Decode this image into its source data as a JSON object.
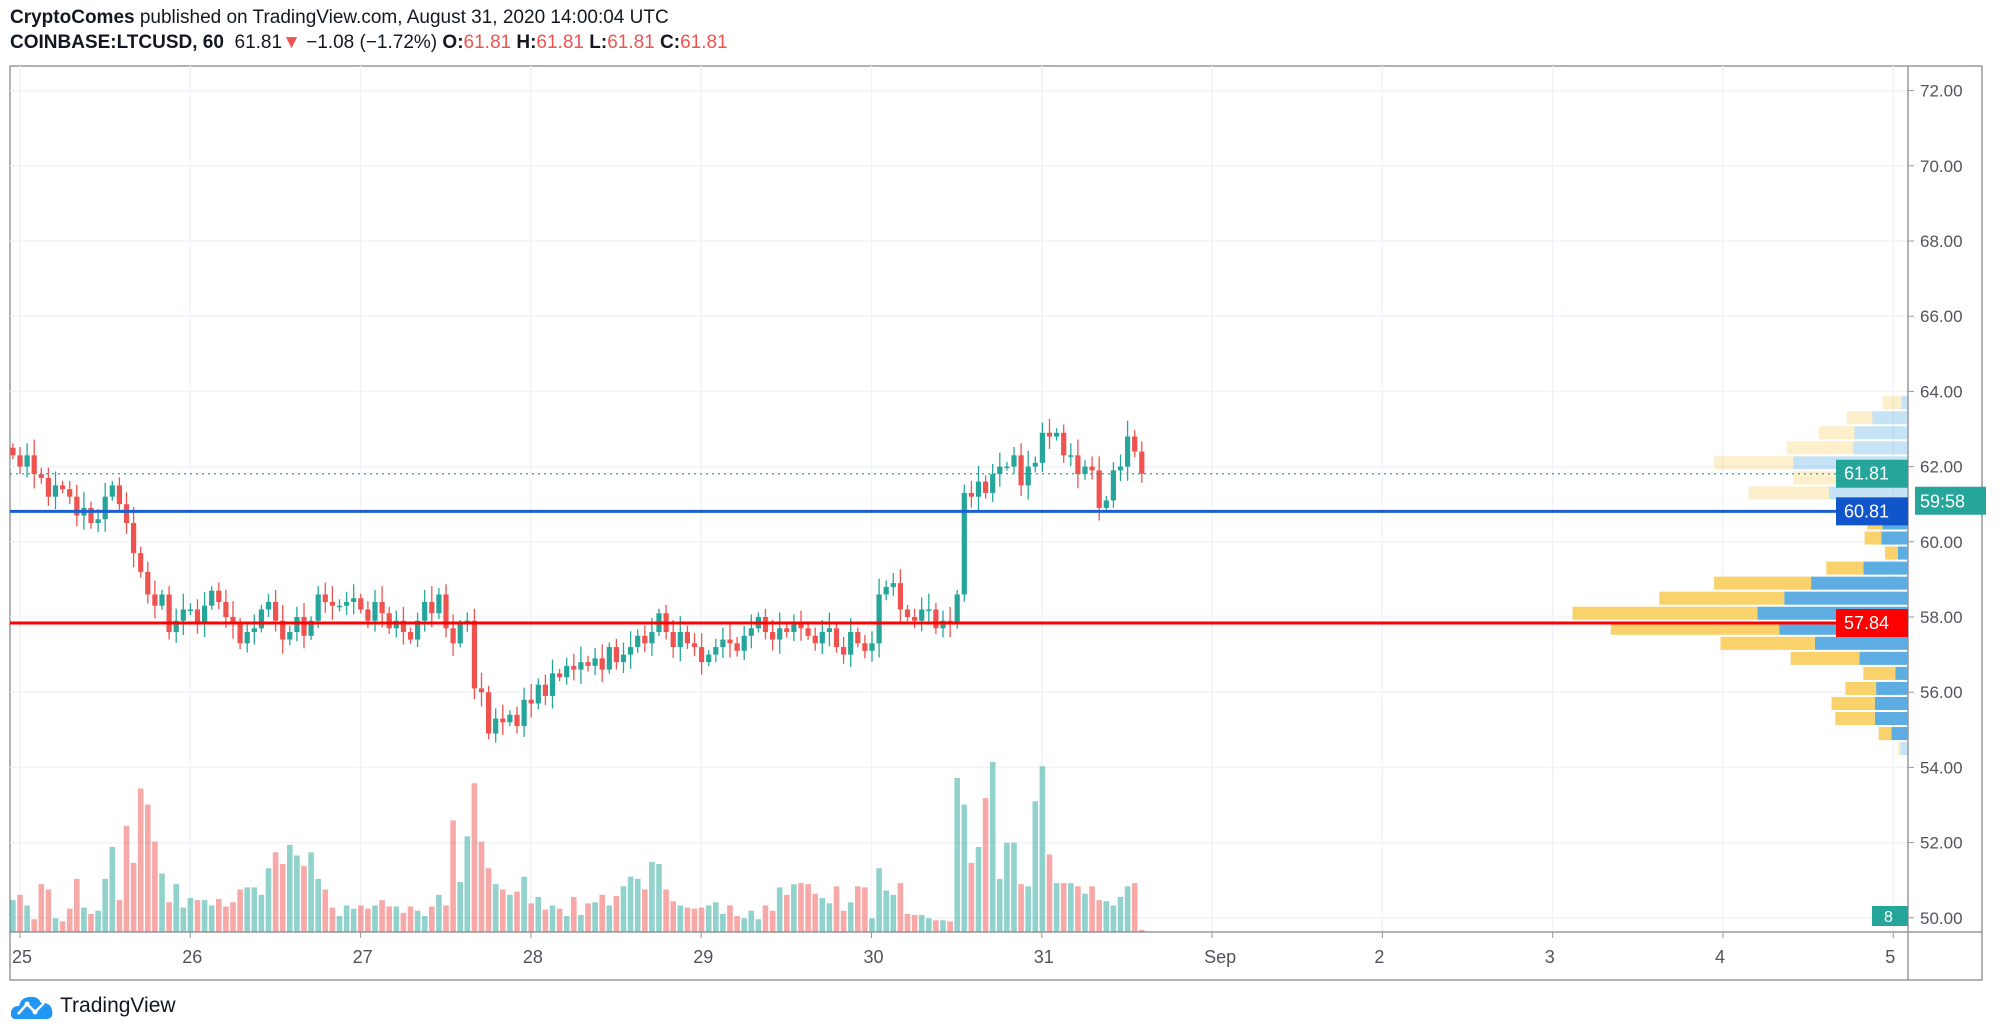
{
  "header": {
    "author": "CryptoComes",
    "published": "published on TradingView.com, August 31, 2020 14:00:04 UTC",
    "symbol": "COINBASE:LTCUSD, 60",
    "last": "61.81",
    "change": "−1.08 (−1.72%)",
    "o_label": "O:",
    "o": "61.81",
    "h_label": "H:",
    "h": "61.81",
    "l_label": "L:",
    "l": "61.81",
    "c_label": "C:",
    "c": "61.81"
  },
  "footer": {
    "brand": "TradingView"
  },
  "colors": {
    "up": "#26a69a",
    "down": "#ef5350",
    "support_line": "#1c5fd0",
    "poc_line": "#ff0000",
    "vp_up": "#5dade2",
    "vp_down": "#f9d26b"
  },
  "chart_data": {
    "type": "candlestick",
    "interval": "60",
    "start": "2020-08-24 23:00",
    "ylim": [
      49.6,
      72.6
    ],
    "y_ticks": [
      "72.00",
      "70.00",
      "68.00",
      "66.00",
      "64.00",
      "62.00",
      "60.00",
      "58.00",
      "56.00",
      "54.00",
      "52.00",
      "50.00"
    ],
    "x_ticks": [
      "25",
      "26",
      "27",
      "28",
      "29",
      "30",
      "31",
      "Sep",
      "2",
      "3",
      "4",
      "5"
    ],
    "grid": true,
    "closes": [
      62.3,
      62.0,
      62.3,
      61.8,
      61.7,
      61.2,
      61.5,
      61.4,
      61.2,
      60.7,
      60.9,
      60.5,
      60.6,
      61.2,
      61.5,
      61.0,
      60.5,
      59.7,
      59.2,
      58.6,
      58.3,
      58.6,
      57.6,
      57.9,
      58.2,
      58.2,
      57.8,
      58.3,
      58.7,
      58.4,
      58.0,
      57.8,
      57.3,
      57.6,
      57.7,
      58.2,
      58.4,
      57.9,
      57.4,
      57.6,
      58.0,
      57.5,
      57.9,
      58.6,
      58.4,
      58.3,
      58.3,
      58.4,
      58.5,
      58.2,
      57.9,
      58.4,
      58.1,
      57.7,
      57.9,
      57.6,
      57.4,
      57.9,
      58.4,
      58.1,
      58.6,
      57.7,
      57.3,
      57.8,
      57.9,
      56.1,
      56.0,
      54.9,
      55.3,
      55.2,
      55.4,
      55.1,
      55.8,
      55.7,
      56.2,
      55.9,
      56.5,
      56.4,
      56.7,
      56.6,
      56.8,
      56.7,
      56.9,
      56.6,
      57.2,
      56.8,
      57.0,
      57.2,
      57.5,
      57.3,
      57.6,
      58.1,
      57.6,
      57.2,
      57.6,
      57.3,
      57.2,
      56.8,
      57.0,
      57.2,
      57.4,
      57.3,
      57.1,
      57.5,
      57.7,
      58.0,
      57.6,
      57.4,
      57.7,
      57.6,
      57.8,
      57.7,
      57.5,
      57.3,
      57.6,
      57.7,
      57.2,
      57.0,
      57.6,
      57.3,
      57.1,
      57.3,
      58.6,
      58.8,
      58.9,
      58.2,
      58.0,
      57.9,
      58.2,
      58.2,
      57.7,
      57.9,
      57.8,
      58.6,
      61.3,
      61.2,
      61.6,
      61.3,
      61.8,
      62.0,
      62.0,
      62.3,
      61.5,
      62.0,
      62.1,
      62.9,
      62.8,
      62.9,
      62.3,
      62.3,
      61.8,
      62.0,
      61.9,
      60.9,
      61.1,
      61.9,
      62.0,
      62.8,
      62.4,
      61.81
    ],
    "volumes": [
      3.0,
      3.5,
      2.5,
      1.2,
      4.5,
      4,
      1.3,
      1,
      2.2,
      5,
      2.3,
      1.7,
      2,
      5,
      8,
      3,
      10,
      6.5,
      13.5,
      12,
      8.5,
      5.5,
      2.8,
      4.5,
      2.3,
      3.2,
      3,
      3,
      2.5,
      3.1,
      2.4,
      2.8,
      4,
      4.2,
      4.2,
      3.5,
      6,
      7.5,
      6.4,
      8.2,
      7.2,
      6.2,
      7.5,
      5,
      4,
      2.3,
      1.5,
      2.5,
      2.2,
      2.5,
      2.2,
      2.5,
      3,
      2.4,
      2.4,
      1.8,
      2.4,
      2,
      1.5,
      2.4,
      3.5,
      2.5,
      10.5,
      4.7,
      9,
      14,
      8.5,
      6,
      4.5,
      4,
      3.5,
      3.8,
      5.2,
      2.7,
      3.3,
      2.1,
      2.5,
      2.2,
      1.5,
      3.3,
      1.6,
      2.7,
      2.8,
      3.5,
      2.5,
      3.4,
      4.3,
      5.2,
      5,
      4,
      6.6,
      6.4,
      4,
      2.9,
      2.5,
      2.3,
      2.2,
      2.3,
      2.5,
      2.8,
      1.7,
      2.5,
      1.5,
      1.3,
      2,
      1.2,
      2.5,
      2,
      4.2,
      3.5,
      4.5,
      4.6,
      4.5,
      3.6,
      3.2,
      2.7,
      4.3,
      2,
      2.8,
      4.3,
      4.2,
      1.3,
      6,
      3.9,
      3.5,
      4.6,
      1.7,
      1.6,
      1.6,
      1.3,
      1.1,
      1.1,
      1.0,
      14.5,
      12,
      6.5,
      8,
      12.6,
      16,
      5,
      8.4,
      8.4,
      4.5,
      4.3,
      12.3,
      15.6,
      7.3,
      4.6,
      4.6,
      4.6,
      4.3,
      3.6,
      4.3,
      3,
      2.9,
      2.5,
      3.3,
      4.3,
      4.6,
      0.2
    ],
    "horizontal_lines": [
      {
        "price": 60.81,
        "label": "60.81",
        "color": "#1c5fd0"
      },
      {
        "price": 57.84,
        "label": "57.84",
        "color": "#ff0000"
      }
    ],
    "last_price": {
      "price": 61.81,
      "label": "61.81",
      "countdown": "59:58",
      "color": "#26a69a"
    },
    "volume_badge": "8",
    "volume_profile": [
      {
        "price": 63.7,
        "up": 5,
        "down": 15,
        "value_area": false
      },
      {
        "price": 63.3,
        "up": 28,
        "down": 20,
        "value_area": false
      },
      {
        "price": 62.9,
        "up": 42,
        "down": 28,
        "value_area": false
      },
      {
        "price": 62.5,
        "up": 43,
        "down": 52,
        "value_area": false
      },
      {
        "price": 62.1,
        "up": 90,
        "down": 62,
        "value_area": false
      },
      {
        "price": 61.7,
        "up": 53,
        "down": 37,
        "value_area": false
      },
      {
        "price": 61.3,
        "up": 62,
        "down": 63,
        "value_area": false
      },
      {
        "price": 60.9,
        "up": 15,
        "down": 10,
        "value_area": false
      },
      {
        "price": 60.5,
        "up": 20,
        "down": 12,
        "value_area": true
      },
      {
        "price": 60.1,
        "up": 21,
        "down": 13,
        "value_area": true
      },
      {
        "price": 59.7,
        "up": 8,
        "down": 10,
        "value_area": true
      },
      {
        "price": 59.3,
        "up": 35,
        "down": 29,
        "value_area": true
      },
      {
        "price": 58.9,
        "up": 76,
        "down": 76,
        "value_area": true
      },
      {
        "price": 58.5,
        "up": 97,
        "down": 98,
        "value_area": true
      },
      {
        "price": 58.1,
        "up": 118,
        "down": 145,
        "value_area": true
      },
      {
        "price": 57.7,
        "up": 101,
        "down": 132,
        "value_area": true
      },
      {
        "price": 57.3,
        "up": 73,
        "down": 74,
        "value_area": true
      },
      {
        "price": 56.9,
        "up": 38,
        "down": 54,
        "value_area": true
      },
      {
        "price": 56.5,
        "up": 10,
        "down": 25,
        "value_area": true
      },
      {
        "price": 56.1,
        "up": 25,
        "down": 24,
        "value_area": true
      },
      {
        "price": 55.7,
        "up": 26,
        "down": 34,
        "value_area": true
      },
      {
        "price": 55.3,
        "up": 26,
        "down": 31,
        "value_area": true
      },
      {
        "price": 54.9,
        "up": 13,
        "down": 10,
        "value_area": true
      },
      {
        "price": 54.5,
        "up": 6,
        "down": 2,
        "value_area": false
      }
    ]
  }
}
